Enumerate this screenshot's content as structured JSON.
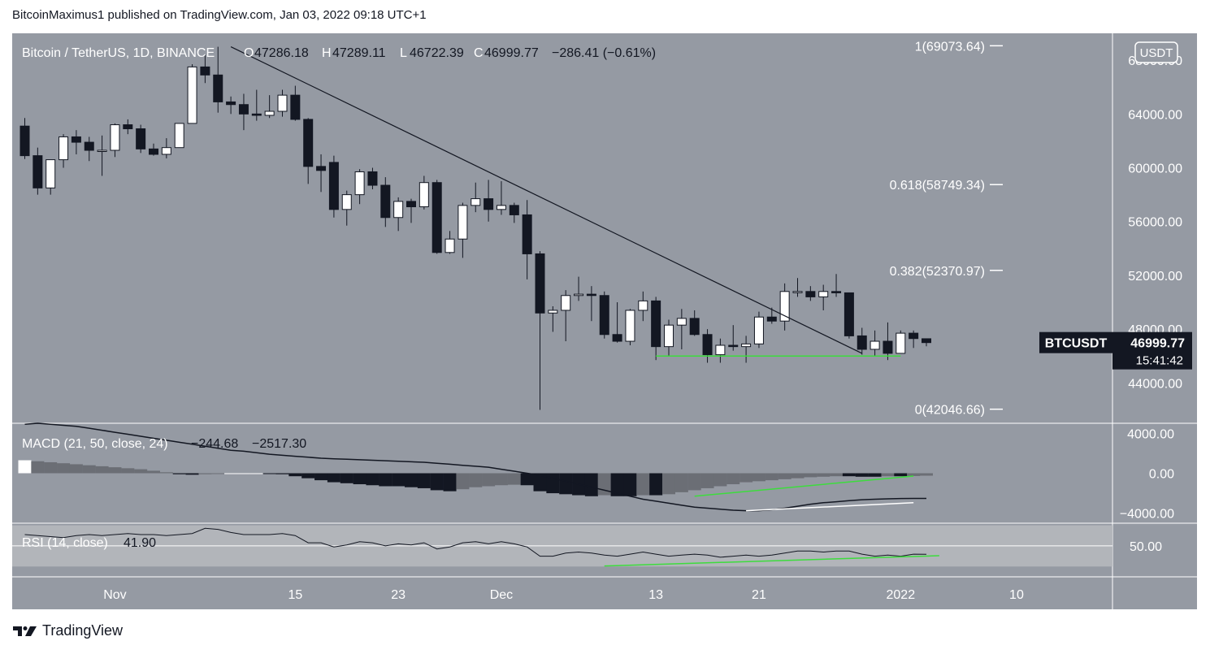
{
  "header": {
    "published_text": "BitcoinMaximus1 published on TradingView.com, Jan 03, 2022 09:18 UTC+1"
  },
  "footer": {
    "brand": "TradingView"
  },
  "colors": {
    "background": "#959aa3",
    "bullish": "#ffffff",
    "bearish": "#131722",
    "trendline": "#131722",
    "support": "#3ddc3d",
    "white_line": "#ffffff"
  },
  "chart_data": [
    {
      "type": "candlestick",
      "title": "Bitcoin / TetherUS, 1D, BINANCE",
      "ohlc_readout": {
        "o_label": "O",
        "o": "47286.18",
        "h_label": "H",
        "h": "47289.11",
        "l_label": "L",
        "l": "46722.39",
        "c_label": "C",
        "c": "46999.77",
        "change": "−286.41 (−0.61%)"
      },
      "currency": "USDT",
      "ylim": [
        41000,
        70000
      ],
      "y_ticks": [
        "68000.00",
        "64000.00",
        "60000.00",
        "56000.00",
        "52000.00",
        "48000.00",
        "44000.00"
      ],
      "y_tick_values": [
        68000,
        64000,
        60000,
        56000,
        52000,
        48000,
        44000
      ],
      "x_tick_labels": [
        "Nov",
        "15",
        "23",
        "Dec",
        "13",
        "21",
        "2022",
        "10"
      ],
      "x_tick_dates": [
        "2021-11-01",
        "2021-11-15",
        "2021-11-23",
        "2021-12-01",
        "2021-12-13",
        "2021-12-21",
        "2022-01-01",
        "2022-01-10"
      ],
      "price_label": {
        "symbol": "BTCUSDT",
        "value": "46999.77",
        "countdown": "15:41:42",
        "price": 46999.77
      },
      "fib_levels": [
        {
          "label": "1(69073.64)",
          "price": 69073.64
        },
        {
          "label": "0.618(58749.34)",
          "price": 58749.34
        },
        {
          "label": "0.382(52370.97)",
          "price": 52370.97
        },
        {
          "label": "0(42046.66)",
          "price": 42046.66
        }
      ],
      "trendline": {
        "from": {
          "date": "2021-11-10",
          "price": 69000
        },
        "to": {
          "date": "2021-12-29",
          "price": 46200
        }
      },
      "support_line": {
        "from": {
          "date": "2021-12-13",
          "price": 46000
        },
        "to": {
          "date": "2022-01-01",
          "price": 46000
        }
      },
      "candles": [
        {
          "date": "2021-10-25",
          "o": 63100,
          "h": 63700,
          "l": 60650,
          "c": 60900
        },
        {
          "date": "2021-10-26",
          "o": 60900,
          "h": 61500,
          "l": 58000,
          "c": 58500
        },
        {
          "date": "2021-10-27",
          "o": 58500,
          "h": 60400,
          "l": 58000,
          "c": 60600
        },
        {
          "date": "2021-10-28",
          "o": 60600,
          "h": 62500,
          "l": 60000,
          "c": 62300
        },
        {
          "date": "2021-10-29",
          "o": 62300,
          "h": 62800,
          "l": 61000,
          "c": 61900
        },
        {
          "date": "2021-10-30",
          "o": 61900,
          "h": 62300,
          "l": 60500,
          "c": 61300
        },
        {
          "date": "2021-10-31",
          "o": 61300,
          "h": 62400,
          "l": 59400,
          "c": 61300
        },
        {
          "date": "2021-11-01",
          "o": 61300,
          "h": 63300,
          "l": 60800,
          "c": 63200
        },
        {
          "date": "2021-11-02",
          "o": 63200,
          "h": 63600,
          "l": 62500,
          "c": 62900
        },
        {
          "date": "2021-11-03",
          "o": 62900,
          "h": 63200,
          "l": 61100,
          "c": 61400
        },
        {
          "date": "2021-11-04",
          "o": 61400,
          "h": 61800,
          "l": 60900,
          "c": 61000
        },
        {
          "date": "2021-11-05",
          "o": 61000,
          "h": 62200,
          "l": 60700,
          "c": 61500
        },
        {
          "date": "2021-11-06",
          "o": 61500,
          "h": 63300,
          "l": 61500,
          "c": 63300
        },
        {
          "date": "2021-11-07",
          "o": 63300,
          "h": 67700,
          "l": 63300,
          "c": 67500
        },
        {
          "date": "2021-11-08",
          "o": 67500,
          "h": 68400,
          "l": 66300,
          "c": 66900
        },
        {
          "date": "2021-11-09",
          "o": 66900,
          "h": 69000,
          "l": 64100,
          "c": 64900
        },
        {
          "date": "2021-11-10",
          "o": 64900,
          "h": 65300,
          "l": 64000,
          "c": 64700
        },
        {
          "date": "2021-11-11",
          "o": 64700,
          "h": 65500,
          "l": 62800,
          "c": 64000
        },
        {
          "date": "2021-11-12",
          "o": 64000,
          "h": 65800,
          "l": 63500,
          "c": 63900
        },
        {
          "date": "2021-11-13",
          "o": 63900,
          "h": 65400,
          "l": 63700,
          "c": 64200
        },
        {
          "date": "2021-11-14",
          "o": 64200,
          "h": 65800,
          "l": 63800,
          "c": 65400
        },
        {
          "date": "2021-11-15",
          "o": 65400,
          "h": 66100,
          "l": 63500,
          "c": 63600
        },
        {
          "date": "2021-11-16",
          "o": 63600,
          "h": 63700,
          "l": 58800,
          "c": 60100
        },
        {
          "date": "2021-11-17",
          "o": 60100,
          "h": 61000,
          "l": 58200,
          "c": 59800
        },
        {
          "date": "2021-11-18",
          "o": 60400,
          "h": 60900,
          "l": 56300,
          "c": 56900
        },
        {
          "date": "2021-11-19",
          "o": 56900,
          "h": 58300,
          "l": 55700,
          "c": 58000
        },
        {
          "date": "2021-11-20",
          "o": 58000,
          "h": 59900,
          "l": 57300,
          "c": 59700
        },
        {
          "date": "2021-11-21",
          "o": 59700,
          "h": 60000,
          "l": 58400,
          "c": 58700
        },
        {
          "date": "2021-11-22",
          "o": 58700,
          "h": 59300,
          "l": 55600,
          "c": 56300
        },
        {
          "date": "2021-11-23",
          "o": 56300,
          "h": 57800,
          "l": 55300,
          "c": 57500
        },
        {
          "date": "2021-11-24",
          "o": 57500,
          "h": 57700,
          "l": 55900,
          "c": 57100
        },
        {
          "date": "2021-11-25",
          "o": 57100,
          "h": 59400,
          "l": 56900,
          "c": 58900
        },
        {
          "date": "2021-11-26",
          "o": 58900,
          "h": 59100,
          "l": 53600,
          "c": 53700
        },
        {
          "date": "2021-11-27",
          "o": 53700,
          "h": 55300,
          "l": 53600,
          "c": 54700
        },
        {
          "date": "2021-11-28",
          "o": 54700,
          "h": 57400,
          "l": 53300,
          "c": 57200
        },
        {
          "date": "2021-11-29",
          "o": 57200,
          "h": 58900,
          "l": 56700,
          "c": 57700
        },
        {
          "date": "2021-11-30",
          "o": 57700,
          "h": 59100,
          "l": 56000,
          "c": 56900
        },
        {
          "date": "2021-12-01",
          "o": 56900,
          "h": 59000,
          "l": 56500,
          "c": 57200
        },
        {
          "date": "2021-12-02",
          "o": 57200,
          "h": 57400,
          "l": 55900,
          "c": 56500
        },
        {
          "date": "2021-12-03",
          "o": 56500,
          "h": 57600,
          "l": 51700,
          "c": 53600
        },
        {
          "date": "2021-12-04",
          "o": 53600,
          "h": 53800,
          "l": 42000,
          "c": 49200
        },
        {
          "date": "2021-12-05",
          "o": 49200,
          "h": 49700,
          "l": 47800,
          "c": 49400
        },
        {
          "date": "2021-12-06",
          "o": 49400,
          "h": 50900,
          "l": 47100,
          "c": 50500
        },
        {
          "date": "2021-12-07",
          "o": 50500,
          "h": 51900,
          "l": 50100,
          "c": 50600
        },
        {
          "date": "2021-12-08",
          "o": 50600,
          "h": 51200,
          "l": 48600,
          "c": 50500
        },
        {
          "date": "2021-12-09",
          "o": 50500,
          "h": 50800,
          "l": 47300,
          "c": 47600
        },
        {
          "date": "2021-12-10",
          "o": 47600,
          "h": 50000,
          "l": 47000,
          "c": 47100
        },
        {
          "date": "2021-12-11",
          "o": 47100,
          "h": 49500,
          "l": 46800,
          "c": 49400
        },
        {
          "date": "2021-12-12",
          "o": 49400,
          "h": 50800,
          "l": 48600,
          "c": 50100
        },
        {
          "date": "2021-12-13",
          "o": 50100,
          "h": 50400,
          "l": 45700,
          "c": 46700
        },
        {
          "date": "2021-12-14",
          "o": 46700,
          "h": 48700,
          "l": 46000,
          "c": 48300
        },
        {
          "date": "2021-12-15",
          "o": 48300,
          "h": 49500,
          "l": 46500,
          "c": 48800
        },
        {
          "date": "2021-12-16",
          "o": 48800,
          "h": 49400,
          "l": 47500,
          "c": 47600
        },
        {
          "date": "2021-12-17",
          "o": 47600,
          "h": 48000,
          "l": 45500,
          "c": 46100
        },
        {
          "date": "2021-12-18",
          "o": 46100,
          "h": 47300,
          "l": 45500,
          "c": 46800
        },
        {
          "date": "2021-12-19",
          "o": 46800,
          "h": 48300,
          "l": 46400,
          "c": 46700
        },
        {
          "date": "2021-12-20",
          "o": 46700,
          "h": 47500,
          "l": 45500,
          "c": 46900
        },
        {
          "date": "2021-12-21",
          "o": 46900,
          "h": 49300,
          "l": 46600,
          "c": 48900
        },
        {
          "date": "2021-12-22",
          "o": 48900,
          "h": 49600,
          "l": 48400,
          "c": 48600
        },
        {
          "date": "2021-12-23",
          "o": 48600,
          "h": 51400,
          "l": 47900,
          "c": 50800
        },
        {
          "date": "2021-12-24",
          "o": 50800,
          "h": 51800,
          "l": 50400,
          "c": 50800
        },
        {
          "date": "2021-12-25",
          "o": 50800,
          "h": 51200,
          "l": 50100,
          "c": 50400
        },
        {
          "date": "2021-12-26",
          "o": 50400,
          "h": 51300,
          "l": 49400,
          "c": 50800
        },
        {
          "date": "2021-12-27",
          "o": 50800,
          "h": 52100,
          "l": 50400,
          "c": 50700
        },
        {
          "date": "2021-12-28",
          "o": 50700,
          "h": 50700,
          "l": 47300,
          "c": 47500
        },
        {
          "date": "2021-12-29",
          "o": 47500,
          "h": 48100,
          "l": 46100,
          "c": 46500
        },
        {
          "date": "2021-12-30",
          "o": 46500,
          "h": 47900,
          "l": 46000,
          "c": 47100
        },
        {
          "date": "2021-12-31",
          "o": 47100,
          "h": 48500,
          "l": 45700,
          "c": 46200
        },
        {
          "date": "2022-01-01",
          "o": 46200,
          "h": 47900,
          "l": 46200,
          "c": 47700
        },
        {
          "date": "2022-01-02",
          "o": 47700,
          "h": 47900,
          "l": 46600,
          "c": 47300
        },
        {
          "date": "2022-01-03",
          "o": 47286.18,
          "h": 47289.11,
          "l": 46722.39,
          "c": 46999.77
        }
      ]
    },
    {
      "type": "bar",
      "title": "MACD (21, 50, close, 24)",
      "readout": [
        "−244.68",
        "−2517.30"
      ],
      "ylim": [
        -5000,
        5000
      ],
      "y_ticks": [
        "4000.00",
        "0.00",
        "−4000.00"
      ],
      "y_tick_values": [
        4000,
        0,
        -4000
      ],
      "histogram": [
        1300,
        1200,
        1100,
        1000,
        900,
        800,
        700,
        600,
        500,
        400,
        250,
        100,
        -100,
        -150,
        -100,
        -50,
        0,
        0,
        0,
        -50,
        -100,
        -300,
        -500,
        -700,
        -900,
        -1000,
        -1100,
        -1200,
        -1300,
        -1300,
        -1400,
        -1500,
        -1700,
        -1800,
        -1600,
        -1400,
        -1300,
        -1200,
        -1150,
        -1200,
        -1800,
        -2000,
        -2100,
        -2200,
        -2300,
        -2200,
        -2300,
        -2300,
        -2200,
        -2200,
        -2100,
        -1900,
        -1700,
        -1500,
        -1300,
        -1100,
        -900,
        -800,
        -700,
        -600,
        -500,
        -400,
        -350,
        -300,
        -300,
        -350,
        -350,
        -300,
        -300,
        -280,
        -244.68
      ],
      "signal": [
        4900,
        5000,
        4900,
        4800,
        4700,
        4500,
        4300,
        4100,
        3900,
        3700,
        3500,
        3300,
        3100,
        2900,
        2700,
        2500,
        2300,
        2200,
        2050,
        1900,
        1800,
        1700,
        1600,
        1500,
        1450,
        1400,
        1350,
        1300,
        1250,
        1200,
        1150,
        1100,
        1000,
        900,
        800,
        700,
        600,
        400,
        200,
        0,
        -200,
        -500,
        -800,
        -1100,
        -1400,
        -1700,
        -2000,
        -2300,
        -2600,
        -2800,
        -3000,
        -3200,
        -3400,
        -3500,
        -3600,
        -3700,
        -3750,
        -3750,
        -3650,
        -3500,
        -3300,
        -3100,
        -2950,
        -2850,
        -2750,
        -2650,
        -2600,
        -2560,
        -2530,
        -2520,
        -2517.3
      ],
      "divergence_green": {
        "from": {
          "date": "2021-12-16",
          "value": -2300
        },
        "to": {
          "date": "2022-01-02",
          "value": -280
        }
      },
      "divergence_white": {
        "from": {
          "date": "2021-12-20",
          "value": -3750
        },
        "to": {
          "date": "2022-01-02",
          "value": -2950
        }
      }
    },
    {
      "type": "line",
      "title": "RSI (14, close)",
      "readout": "41.90",
      "ylim": [
        20,
        72
      ],
      "y_ticks": [
        "50.00"
      ],
      "y_tick_values": [
        50
      ],
      "band": [
        30,
        70
      ],
      "values": [
        61,
        60,
        59,
        58,
        60,
        61,
        60,
        61,
        62,
        61,
        61,
        60,
        61,
        62,
        67,
        66,
        63,
        61,
        61,
        61,
        62,
        60,
        53,
        53,
        49,
        51,
        54,
        53,
        50,
        52,
        51,
        53,
        47,
        49,
        53,
        54,
        52,
        54,
        52,
        49,
        40,
        40,
        43,
        44,
        43,
        41,
        40,
        42,
        44,
        42,
        40,
        41,
        42,
        41,
        39,
        40,
        41,
        40,
        41,
        43,
        45,
        45,
        44,
        45,
        45,
        42,
        40,
        41,
        40,
        42,
        41.9
      ],
      "support": {
        "from": {
          "date": "2021-12-09",
          "value": 30.5
        },
        "to": {
          "date": "2022-01-04",
          "value": 40.5
        }
      }
    }
  ]
}
